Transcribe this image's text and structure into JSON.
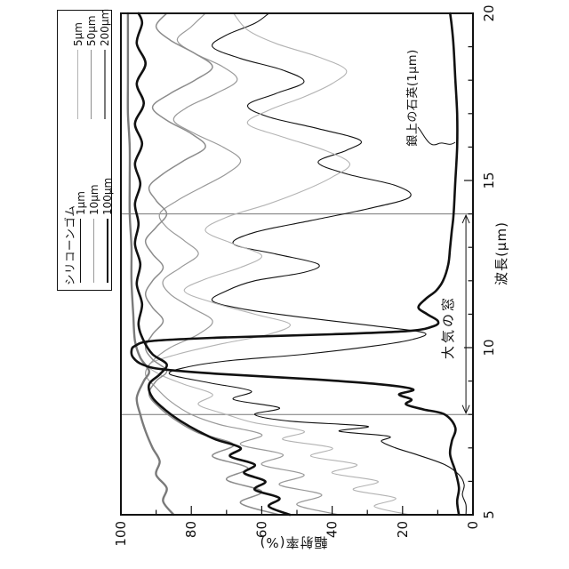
{
  "figure": {
    "x_axis": {
      "label": "波長(μm)",
      "range": [
        5,
        20
      ],
      "major_ticks": [
        5,
        10,
        15,
        20
      ],
      "minor_step": 1
    },
    "y_axis": {
      "label": "輻射率(%)",
      "range": [
        0,
        100
      ],
      "major_ticks": [
        0,
        20,
        40,
        60,
        80,
        100
      ],
      "minor_step": 10
    },
    "legend": {
      "title": "シリコーンゴム",
      "col1": [
        {
          "key": "s1",
          "label": "1μm"
        },
        {
          "key": "s10",
          "label": "10μm"
        },
        {
          "key": "s100",
          "label": "100μm"
        }
      ],
      "col2": [
        {
          "key": "s5",
          "label": "5μm"
        },
        {
          "key": "s50",
          "label": "50μm"
        },
        {
          "key": "s200",
          "label": "200μm"
        }
      ]
    },
    "annotations": {
      "window_label": "大気の窓",
      "window_range_um": [
        8,
        14
      ],
      "window_arrow_emissivity": 2,
      "quartz_label": "銀上の石英(1μm)"
    },
    "rotation_note": "entire chart drawn rotated 90° counter-clockwise",
    "ink_color": "#111111"
  },
  "chart_data": {
    "type": "line",
    "title": "",
    "xlabel": "波長(μm)",
    "ylabel": "輻射率(%)",
    "xlim": [
      5,
      20
    ],
    "ylim": [
      0,
      100
    ],
    "grid": false,
    "legend_position": "above-plot-right",
    "annotations": [
      {
        "text": "大気の窓",
        "kind": "double-arrow-span",
        "x_range": [
          8,
          14
        ],
        "y": 2
      },
      {
        "text": "銀上の石英(1μm)",
        "kind": "leader-label",
        "x": 16.3,
        "y": 17
      }
    ],
    "series": [
      {
        "key": "s1",
        "name": "シリコーンゴム 1μm",
        "color": "#111111",
        "width": 1.1,
        "points": [
          [
            5,
            2
          ],
          [
            5.3,
            2
          ],
          [
            5.6,
            3
          ],
          [
            5.9,
            2.5
          ],
          [
            6.2,
            4
          ],
          [
            6.5,
            8
          ],
          [
            6.8,
            16
          ],
          [
            7,
            22
          ],
          [
            7.2,
            26
          ],
          [
            7.35,
            24
          ],
          [
            7.5,
            38
          ],
          [
            7.65,
            30
          ],
          [
            7.8,
            52
          ],
          [
            8,
            62
          ],
          [
            8.2,
            55
          ],
          [
            8.45,
            68
          ],
          [
            8.7,
            63
          ],
          [
            8.95,
            75
          ],
          [
            9.2,
            86
          ],
          [
            9.4,
            82
          ],
          [
            9.6,
            70
          ],
          [
            9.8,
            48
          ],
          [
            10.05,
            28
          ],
          [
            10.25,
            17
          ],
          [
            10.45,
            14
          ],
          [
            10.65,
            28
          ],
          [
            10.9,
            48
          ],
          [
            11.15,
            65
          ],
          [
            11.4,
            74
          ],
          [
            11.7,
            70
          ],
          [
            12,
            62
          ],
          [
            12.25,
            48
          ],
          [
            12.5,
            44
          ],
          [
            12.8,
            56
          ],
          [
            13.1,
            68
          ],
          [
            13.45,
            62
          ],
          [
            13.8,
            46
          ],
          [
            14.15,
            30
          ],
          [
            14.5,
            18
          ],
          [
            14.85,
            22
          ],
          [
            15.2,
            36
          ],
          [
            15.55,
            44
          ],
          [
            15.9,
            36
          ],
          [
            16.2,
            32
          ],
          [
            16.55,
            44
          ],
          [
            16.9,
            58
          ],
          [
            17.25,
            64
          ],
          [
            17.6,
            56
          ],
          [
            17.95,
            48
          ],
          [
            18.3,
            54
          ],
          [
            18.65,
            66
          ],
          [
            19,
            74
          ],
          [
            19.35,
            70
          ],
          [
            19.7,
            62
          ],
          [
            20,
            58
          ]
        ]
      },
      {
        "key": "s5",
        "name": "シリコーンゴム 5μm",
        "color": "#b3b3b3",
        "width": 1.1,
        "points": [
          [
            5,
            18
          ],
          [
            5.25,
            28
          ],
          [
            5.5,
            22
          ],
          [
            5.75,
            34
          ],
          [
            6,
            27
          ],
          [
            6.25,
            40
          ],
          [
            6.5,
            33
          ],
          [
            6.75,
            46
          ],
          [
            7,
            40
          ],
          [
            7.25,
            54
          ],
          [
            7.5,
            48
          ],
          [
            7.75,
            62
          ],
          [
            8,
            70
          ],
          [
            8.3,
            78
          ],
          [
            8.6,
            74
          ],
          [
            8.9,
            82
          ],
          [
            9.2,
            89
          ],
          [
            9.5,
            92
          ],
          [
            9.8,
            84
          ],
          [
            10.1,
            72
          ],
          [
            10.4,
            58
          ],
          [
            10.7,
            52
          ],
          [
            11,
            62
          ],
          [
            11.35,
            74
          ],
          [
            11.7,
            82
          ],
          [
            12.05,
            76
          ],
          [
            12.4,
            66
          ],
          [
            12.75,
            60
          ],
          [
            13.1,
            68
          ],
          [
            13.5,
            76
          ],
          [
            13.9,
            70
          ],
          [
            14.3,
            58
          ],
          [
            14.7,
            48
          ],
          [
            15.1,
            40
          ],
          [
            15.5,
            35
          ],
          [
            15.9,
            42
          ],
          [
            16.3,
            54
          ],
          [
            16.7,
            64
          ],
          [
            17.1,
            58
          ],
          [
            17.5,
            48
          ],
          [
            17.9,
            40
          ],
          [
            18.3,
            36
          ],
          [
            18.7,
            44
          ],
          [
            19.1,
            56
          ],
          [
            19.5,
            64
          ],
          [
            20,
            68
          ]
        ]
      },
      {
        "key": "s10",
        "name": "シリコーンゴム 10μm",
        "color": "#999999",
        "width": 1.2,
        "points": [
          [
            5,
            38
          ],
          [
            5.3,
            50
          ],
          [
            5.6,
            43
          ],
          [
            5.9,
            55
          ],
          [
            6.2,
            48
          ],
          [
            6.5,
            60
          ],
          [
            6.8,
            54
          ],
          [
            7.1,
            66
          ],
          [
            7.4,
            60
          ],
          [
            7.7,
            72
          ],
          [
            8,
            80
          ],
          [
            8.4,
            86
          ],
          [
            8.8,
            90
          ],
          [
            9.2,
            93
          ],
          [
            9.6,
            91
          ],
          [
            10,
            86
          ],
          [
            10.4,
            78
          ],
          [
            10.8,
            74
          ],
          [
            11.2,
            80
          ],
          [
            11.6,
            86
          ],
          [
            12,
            88
          ],
          [
            12.4,
            83
          ],
          [
            12.8,
            78
          ],
          [
            13.2,
            82
          ],
          [
            13.6,
            87
          ],
          [
            14,
            89
          ],
          [
            14.4,
            84
          ],
          [
            14.8,
            77
          ],
          [
            15.2,
            70
          ],
          [
            15.6,
            66
          ],
          [
            16,
            71
          ],
          [
            16.4,
            79
          ],
          [
            16.8,
            85
          ],
          [
            17.2,
            81
          ],
          [
            17.6,
            73
          ],
          [
            18,
            67
          ],
          [
            18.4,
            71
          ],
          [
            18.8,
            79
          ],
          [
            19.2,
            84
          ],
          [
            19.6,
            80
          ],
          [
            20,
            76
          ]
        ]
      },
      {
        "key": "s50",
        "name": "シリコーンゴム 50μm",
        "color": "#8c8c8c",
        "width": 1.5,
        "points": [
          [
            5,
            55
          ],
          [
            5.35,
            66
          ],
          [
            5.7,
            60
          ],
          [
            6.05,
            70
          ],
          [
            6.4,
            64
          ],
          [
            6.75,
            74
          ],
          [
            7.1,
            68
          ],
          [
            7.45,
            78
          ],
          [
            7.8,
            84
          ],
          [
            8.2,
            89
          ],
          [
            8.6,
            92
          ],
          [
            9,
            90
          ],
          [
            9.3,
            87
          ],
          [
            9.65,
            91
          ],
          [
            10,
            93
          ],
          [
            10.4,
            91
          ],
          [
            10.8,
            88
          ],
          [
            11.2,
            91
          ],
          [
            11.6,
            93
          ],
          [
            12,
            91
          ],
          [
            12.4,
            88
          ],
          [
            12.8,
            91
          ],
          [
            13.2,
            93
          ],
          [
            13.6,
            90
          ],
          [
            14,
            87
          ],
          [
            14.4,
            90
          ],
          [
            14.8,
            92
          ],
          [
            15.2,
            88
          ],
          [
            15.6,
            82
          ],
          [
            16,
            76
          ],
          [
            16.4,
            80
          ],
          [
            16.8,
            87
          ],
          [
            17.2,
            91
          ],
          [
            17.6,
            86
          ],
          [
            18,
            79
          ],
          [
            18.4,
            74
          ],
          [
            18.8,
            79
          ],
          [
            19.2,
            86
          ],
          [
            19.6,
            90
          ],
          [
            20,
            87
          ]
        ]
      },
      {
        "key": "s100",
        "name": "シリコーンゴム 100μm",
        "color": "#111111",
        "width": 2.6,
        "points": [
          [
            5,
            52
          ],
          [
            5.25,
            58
          ],
          [
            5.5,
            55
          ],
          [
            5.75,
            62
          ],
          [
            6,
            59
          ],
          [
            6.25,
            65
          ],
          [
            6.5,
            62
          ],
          [
            6.75,
            69
          ],
          [
            7,
            66
          ],
          [
            7.25,
            73
          ],
          [
            7.5,
            78
          ],
          [
            7.8,
            83
          ],
          [
            8.1,
            87
          ],
          [
            8.5,
            91
          ],
          [
            8.9,
            92
          ],
          [
            9.2,
            89
          ],
          [
            9.5,
            87
          ],
          [
            9.8,
            91
          ],
          [
            10.2,
            93.5
          ],
          [
            10.7,
            95
          ],
          [
            11.3,
            94
          ],
          [
            11.9,
            95.5
          ],
          [
            12.5,
            94.5
          ],
          [
            13.1,
            96
          ],
          [
            13.7,
            95
          ],
          [
            14.3,
            96
          ],
          [
            14.9,
            94.5
          ],
          [
            15.5,
            96
          ],
          [
            16.1,
            94
          ],
          [
            16.7,
            96
          ],
          [
            17.3,
            93.5
          ],
          [
            17.9,
            95.5
          ],
          [
            18.5,
            93
          ],
          [
            19.1,
            95.5
          ],
          [
            19.7,
            94
          ],
          [
            20,
            95
          ]
        ]
      },
      {
        "key": "s200",
        "name": "シリコーンゴム 200μm",
        "color": "#7a7a7a",
        "width": 2.4,
        "points": [
          [
            5,
            85
          ],
          [
            5.4,
            88
          ],
          [
            5.8,
            87
          ],
          [
            6.2,
            90
          ],
          [
            6.6,
            89
          ],
          [
            7,
            91
          ],
          [
            7.5,
            93
          ],
          [
            8,
            94.5
          ],
          [
            8.5,
            95.5
          ],
          [
            9,
            93.5
          ],
          [
            9.3,
            92
          ],
          [
            9.7,
            94.5
          ],
          [
            10.2,
            96
          ],
          [
            11,
            96.5
          ],
          [
            12,
            97
          ],
          [
            13,
            97
          ],
          [
            14,
            97.5
          ],
          [
            15,
            97.5
          ],
          [
            16,
            97.5
          ],
          [
            17,
            98
          ],
          [
            18,
            98
          ],
          [
            19,
            98
          ],
          [
            20,
            98
          ]
        ]
      },
      {
        "key": "quartz",
        "name": "銀上の石英(1μm)",
        "color": "#111111",
        "width": 2.6,
        "points": [
          [
            5,
            4
          ],
          [
            5.4,
            4.5
          ],
          [
            5.8,
            4
          ],
          [
            6.3,
            5
          ],
          [
            6.8,
            6.5
          ],
          [
            7.2,
            6
          ],
          [
            7.6,
            5
          ],
          [
            8,
            8
          ],
          [
            8.15,
            14
          ],
          [
            8.3,
            19
          ],
          [
            8.45,
            17.5
          ],
          [
            8.6,
            21
          ],
          [
            8.75,
            17
          ],
          [
            8.9,
            26
          ],
          [
            9.05,
            45
          ],
          [
            9.2,
            70
          ],
          [
            9.35,
            88
          ],
          [
            9.5,
            94
          ],
          [
            9.7,
            96.5
          ],
          [
            9.9,
            97
          ],
          [
            10.05,
            96
          ],
          [
            10.2,
            91
          ],
          [
            10.3,
            72
          ],
          [
            10.4,
            40
          ],
          [
            10.5,
            18
          ],
          [
            10.65,
            11
          ],
          [
            10.8,
            10
          ],
          [
            11,
            13
          ],
          [
            11.2,
            15.5
          ],
          [
            11.45,
            13.5
          ],
          [
            11.7,
            10.5
          ],
          [
            12,
            8.5
          ],
          [
            12.5,
            7
          ],
          [
            13,
            6.5
          ],
          [
            13.5,
            6
          ],
          [
            14,
            5.5
          ],
          [
            15,
            5
          ],
          [
            16,
            4.5
          ],
          [
            17,
            4.5
          ],
          [
            18,
            5
          ],
          [
            19,
            5.5
          ],
          [
            19.6,
            6
          ],
          [
            20,
            6.5
          ]
        ]
      }
    ]
  }
}
